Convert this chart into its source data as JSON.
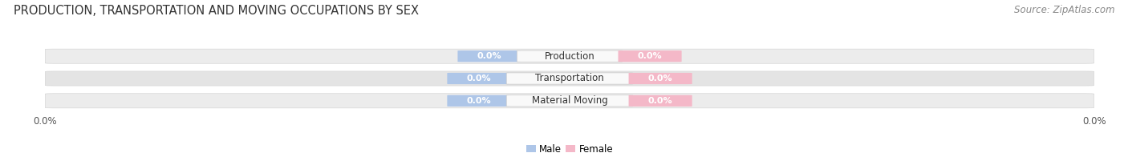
{
  "title": "PRODUCTION, TRANSPORTATION AND MOVING OCCUPATIONS BY SEX",
  "source_text": "Source: ZipAtlas.com",
  "categories": [
    "Production",
    "Transportation",
    "Material Moving"
  ],
  "male_values": [
    0.0,
    0.0,
    0.0
  ],
  "female_values": [
    0.0,
    0.0,
    0.0
  ],
  "male_color": "#aec6e8",
  "female_color": "#f4b8c8",
  "male_label": "Male",
  "female_label": "Female",
  "x_tick_left": "0.0%",
  "x_tick_right": "0.0%",
  "title_fontsize": 10.5,
  "source_fontsize": 8.5,
  "label_fontsize": 8,
  "cat_fontsize": 8.5,
  "bar_height": 0.62,
  "row_colors": [
    "#ececec",
    "#e4e4e4",
    "#ececec"
  ],
  "row_bg_colors": [
    "#f5f5f5",
    "#eeeeee",
    "#f5f5f5"
  ],
  "center_label_color": "#f9f9f9",
  "center_label_edge": "#cccccc"
}
